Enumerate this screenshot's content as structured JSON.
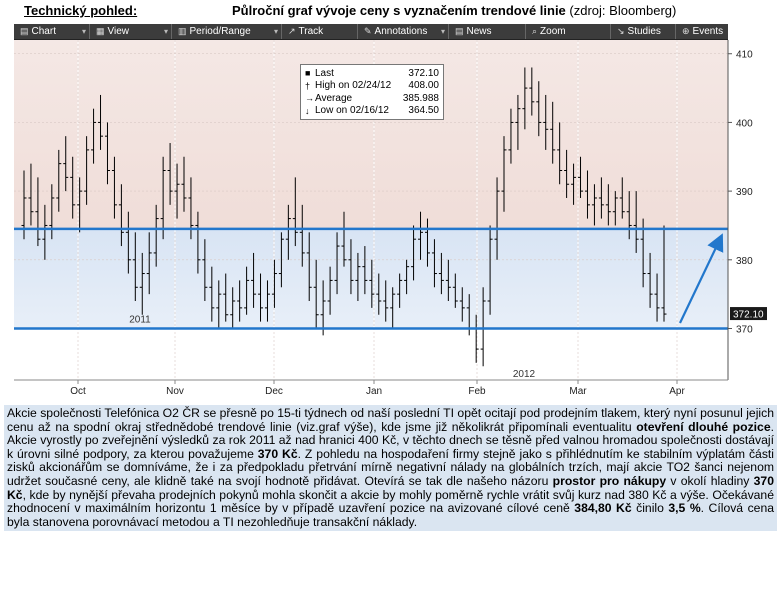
{
  "header": {
    "left_title": "Technický pohled:",
    "title_bold": "Půlroční graf vývoje ceny s vyznačením trendové linie",
    "title_source": "(zdroj: Bloomberg)"
  },
  "toolbar": {
    "items": [
      {
        "label": "Chart",
        "icon": "chart-icon"
      },
      {
        "label": "View",
        "icon": "view-icon"
      },
      {
        "label": "Period/Range",
        "icon": "period-icon"
      },
      {
        "label": "Track",
        "icon": "track-icon"
      },
      {
        "label": "Annotations",
        "icon": "annotations-icon"
      },
      {
        "label": "News",
        "icon": "news-icon"
      },
      {
        "label": "Zoom",
        "icon": "zoom-icon"
      },
      {
        "label": "Studies",
        "icon": "studies-icon"
      },
      {
        "label": "Events",
        "icon": "events-icon"
      }
    ]
  },
  "legend": {
    "rows": [
      {
        "symbol": "■",
        "label": "Last",
        "value": "372.10"
      },
      {
        "symbol": "†",
        "label": "High on 02/24/12",
        "value": "408.00"
      },
      {
        "symbol": "→",
        "label": "Average",
        "value": "385.988"
      },
      {
        "symbol": "↓",
        "label": "Low on 02/16/12",
        "value": "364.50"
      }
    ]
  },
  "chart_data": {
    "type": "bar",
    "subtype": "ohlc",
    "ylim": [
      362.5,
      412
    ],
    "y_ticks": [
      "410",
      "400",
      "390",
      "380",
      "370"
    ],
    "x_month_labels": [
      "Oct",
      "Nov",
      "Dec",
      "Jan",
      "Feb",
      "Mar",
      "Apr"
    ],
    "x_year_labels": [
      "2011",
      "2012"
    ],
    "last_price_label": "372.10",
    "last_price": 372.1,
    "trend_lines": [
      {
        "name": "upper",
        "value": 384.5
      },
      {
        "name": "lower",
        "value": 370
      }
    ],
    "colors": {
      "upper_band": "#f3e3e0",
      "lower_band": "#dbe6f4",
      "trend_line": "#2277cc",
      "arrow": "#2277cc",
      "bars": "#000000"
    },
    "ohlc": [
      [
        385,
        393,
        383,
        389
      ],
      [
        389,
        394,
        385,
        387
      ],
      [
        387,
        392,
        382,
        383
      ],
      [
        383,
        388,
        380,
        385
      ],
      [
        385,
        391,
        383,
        389
      ],
      [
        389,
        396,
        387,
        394
      ],
      [
        394,
        398,
        390,
        392
      ],
      [
        392,
        395,
        386,
        388
      ],
      [
        388,
        392,
        384,
        390
      ],
      [
        390,
        398,
        388,
        396
      ],
      [
        396,
        402,
        394,
        400
      ],
      [
        400,
        404,
        396,
        398
      ],
      [
        398,
        400,
        391,
        393
      ],
      [
        393,
        395,
        386,
        388
      ],
      [
        388,
        391,
        382,
        384
      ],
      [
        384,
        387,
        378,
        380
      ],
      [
        380,
        384,
        374,
        376
      ],
      [
        376,
        381,
        372,
        378
      ],
      [
        378,
        384,
        375,
        381
      ],
      [
        381,
        388,
        379,
        386
      ],
      [
        386,
        395,
        383,
        393
      ],
      [
        393,
        397,
        388,
        390
      ],
      [
        390,
        394,
        386,
        391
      ],
      [
        391,
        395,
        387,
        389
      ],
      [
        389,
        392,
        383,
        385
      ],
      [
        385,
        387,
        378,
        380
      ],
      [
        380,
        383,
        374,
        376
      ],
      [
        376,
        379,
        371,
        373
      ],
      [
        373,
        377,
        370,
        375
      ],
      [
        375,
        378,
        371,
        372
      ],
      [
        372,
        376,
        370,
        374
      ],
      [
        374,
        377,
        371,
        373
      ],
      [
        373,
        379,
        372,
        377
      ],
      [
        377,
        381,
        373,
        375
      ],
      [
        375,
        378,
        371,
        373
      ],
      [
        373,
        377,
        371,
        375
      ],
      [
        375,
        380,
        373,
        378
      ],
      [
        378,
        384,
        376,
        383
      ],
      [
        383,
        388,
        380,
        386
      ],
      [
        386,
        392,
        382,
        384
      ],
      [
        384,
        388,
        379,
        381
      ],
      [
        381,
        384,
        374,
        376
      ],
      [
        376,
        380,
        370,
        372
      ],
      [
        372,
        377,
        369,
        374
      ],
      [
        374,
        379,
        372,
        377
      ],
      [
        377,
        384,
        375,
        382
      ],
      [
        382,
        387,
        379,
        380
      ],
      [
        380,
        383,
        375,
        377
      ],
      [
        377,
        381,
        374,
        379
      ],
      [
        379,
        382,
        375,
        377
      ],
      [
        377,
        380,
        373,
        375
      ],
      [
        375,
        378,
        372,
        374
      ],
      [
        374,
        377,
        371,
        373
      ],
      [
        373,
        376,
        370,
        375
      ],
      [
        375,
        378,
        373,
        377
      ],
      [
        377,
        380,
        375,
        379
      ],
      [
        379,
        385,
        377,
        383
      ],
      [
        383,
        387,
        380,
        384
      ],
      [
        384,
        386,
        379,
        381
      ],
      [
        381,
        383,
        376,
        378
      ],
      [
        378,
        381,
        375,
        377
      ],
      [
        377,
        380,
        374,
        376
      ],
      [
        376,
        378,
        373,
        374
      ],
      [
        374,
        376,
        371,
        373
      ],
      [
        373,
        375,
        369,
        370
      ],
      [
        370,
        372,
        365,
        367
      ],
      [
        367,
        376,
        364.5,
        374
      ],
      [
        374,
        385,
        372,
        383
      ],
      [
        383,
        392,
        380,
        390
      ],
      [
        390,
        398,
        387,
        396
      ],
      [
        396,
        402,
        394,
        400
      ],
      [
        400,
        404,
        396,
        402
      ],
      [
        402,
        408,
        399,
        405
      ],
      [
        405,
        408,
        401,
        403
      ],
      [
        403,
        406,
        398,
        400
      ],
      [
        400,
        404,
        396,
        399
      ],
      [
        399,
        403,
        394,
        396
      ],
      [
        396,
        400,
        391,
        393
      ],
      [
        393,
        396,
        389,
        391
      ],
      [
        391,
        394,
        388,
        392
      ],
      [
        392,
        395,
        389,
        390
      ],
      [
        390,
        393,
        386,
        388
      ],
      [
        388,
        391,
        385,
        389
      ],
      [
        389,
        392,
        386,
        388
      ],
      [
        388,
        391,
        385,
        387
      ],
      [
        387,
        390,
        385,
        389
      ],
      [
        389,
        392,
        386,
        387
      ],
      [
        387,
        390,
        383,
        385
      ],
      [
        385,
        390,
        381,
        383
      ],
      [
        383,
        386,
        376,
        378
      ],
      [
        378,
        381,
        373,
        375
      ],
      [
        375,
        378,
        371,
        373
      ],
      [
        373,
        385,
        371,
        372.1
      ]
    ]
  },
  "text": {
    "p1": "Akcie společnosti Telefónica O2 ČR se přesně po 15-ti týdnech od naší poslední TI opět ocitají pod prodejním tlakem, který nyní posunul jejich cenu až na spodní okraj střednědobé trendové linie (viz.graf výše), kde jsme již několikrát připomínali eventualitu ",
    "b1": "otevření dlouhé pozice",
    "p2": ". Akcie vyrostly po zveřejnění výsledků za rok  2011 až nad hranici 400 Kč, v těchto dnech se těsně před valnou hromadou společnosti dostávají k úrovni silné podpory, za kterou považujeme ",
    "b2": "370 Kč",
    "p3": ". Z pohledu na hospodaření firmy stejně jako s přihlédnutím ke stabilním výplatám části zisků akcionářům se domníváme, že i za předpokladu přetrvání mírně negativní nálady na globálních trzích, mají akcie TO2 šanci nejenom udržet současné ceny, ale klidně také na svojí hodnotě přidávat. Otevírá se tak dle našeho názoru ",
    "b3": "prostor pro nákupy",
    "p4": " v okolí hladiny ",
    "b4": "370 Kč",
    "p5": ", kde by  nynější převaha prodejních pokynů mohla skončit a akcie by mohly poměrně rychle vrátit svůj kurz nad 380 Kč a výše. Očekávané zhodnocení v maximálním horizontu 1 měsíce  by v případě uzavření pozice na avizované cílové ceně ",
    "b5": "384,80 Kč",
    "p6": " činilo ",
    "b6": "3,5 %",
    "p7": ". Cílová cena byla  stanovena porovnávací metodou a TI nezohledňuje transakční náklady."
  }
}
